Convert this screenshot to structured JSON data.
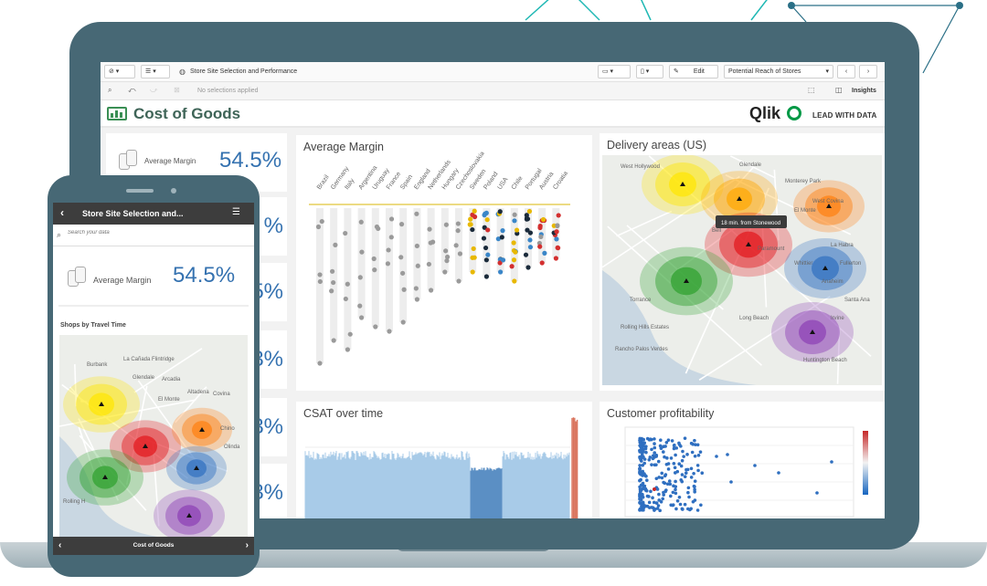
{
  "app": {
    "toolbar_title": "Store Site Selection and Performance",
    "edit_label": "Edit",
    "sheet_selector": "Potential Reach of Stores",
    "selections_text": "No selections applied",
    "insights_label": "Insights"
  },
  "header": {
    "title": "Cost of Goods",
    "brand": "Qlik",
    "tagline": "LEAD WITH DATA"
  },
  "kpis": [
    {
      "label": "Average Margin",
      "value": "54.5%"
    },
    {
      "value": "%"
    },
    {
      "value": "5%"
    },
    {
      "value": "3%"
    },
    {
      "value": "3%"
    },
    {
      "value": "3%"
    }
  ],
  "panels": {
    "average_margin": {
      "title": "Average Margin",
      "countries": [
        "Brazil",
        "Germany",
        "Italy",
        "Argentina",
        "Uruguay",
        "France",
        "Spain",
        "England",
        "Netherlands",
        "Hungary",
        "Czechoslovakia",
        "Sweden",
        "Poland",
        "USA",
        "Chile",
        "Portugal",
        "Austria",
        "Croatia"
      ]
    },
    "delivery": {
      "title": "Delivery areas (US)",
      "tooltip": "18 min. from Stonewood",
      "places": [
        "West Hollywood",
        "Glendale",
        "Monterey Park",
        "El Monte",
        "Bell",
        "Paramount",
        "Torrance",
        "Rolling Hills Estates",
        "Rancho Palos Verdes",
        "Long Beach",
        "Huntington Beach",
        "Irvine",
        "West Covina",
        "Whittier",
        "La Habra",
        "Anaheim",
        "Fullerton",
        "Santa Ana"
      ]
    },
    "csat": {
      "title": "CSAT over time"
    },
    "profitability": {
      "title": "Customer profitability"
    }
  },
  "phone": {
    "title": "Store Site Selection and...",
    "search_placeholder": "Search your data",
    "kpi_label": "Average Margin",
    "kpi_value": "54.5%",
    "map_title": "Shops by Travel Time",
    "map_places": [
      "La Cañada Flintridge",
      "Burbank",
      "Glendale",
      "Arcadia",
      "Altadena",
      "Covina",
      "El Monte",
      "Chino",
      "Olinda",
      "Rolling H"
    ],
    "bottom_label": "Cost of Goods"
  },
  "colors": {
    "shell": "#476875",
    "title_green": "#3e6457",
    "kpi_blue": "#3572b0",
    "qlik_green": "#009845"
  }
}
